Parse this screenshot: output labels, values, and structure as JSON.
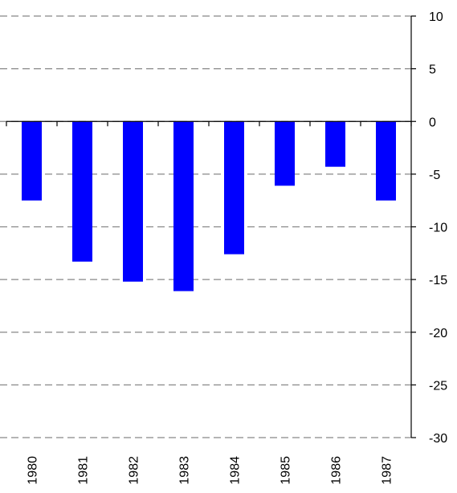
{
  "chart_data": {
    "type": "bar",
    "categories": [
      "1980",
      "1981",
      "1982",
      "1983",
      "1984",
      "1985",
      "1986",
      "1987"
    ],
    "values": [
      -7.5,
      -13.3,
      -15.2,
      -16.1,
      -12.6,
      -6.1,
      -4.3,
      -7.5
    ],
    "color": "#0000ff",
    "ylim": [
      -30,
      10
    ],
    "yticks": [
      -30,
      -25,
      -20,
      -15,
      -10,
      -5,
      0,
      5,
      10
    ],
    "grid": true,
    "y_axis_side": "right"
  }
}
